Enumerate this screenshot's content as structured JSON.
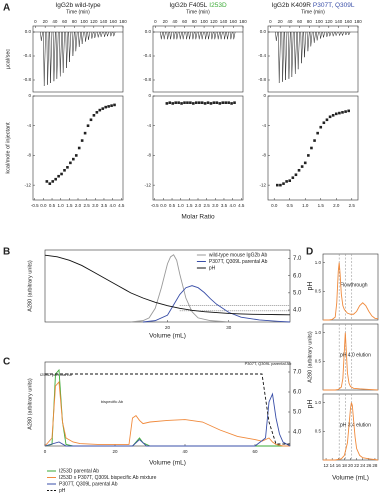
{
  "chart_data": [
    {
      "type": "thermogram",
      "panel": "A",
      "title_parts": [
        {
          "text": "IgG2b wild-type",
          "color": "#222222"
        }
      ],
      "xlabel": "Time (min)",
      "ylabel": "µcal/sec",
      "xlim": [
        -5,
        180
      ],
      "xticks": [
        0,
        20,
        40,
        60,
        80,
        100,
        120,
        140,
        160,
        180
      ],
      "ylim": [
        -1.0,
        0.1
      ],
      "yticks": [
        -0.8,
        -0.4,
        {
          "value": 0,
          "label": "0.0"
        }
      ],
      "color": "#222222",
      "x": [
        12,
        18,
        25,
        31,
        38,
        44,
        51,
        57,
        64,
        70,
        77,
        83,
        90,
        96,
        103,
        109,
        116,
        122,
        129,
        135,
        142,
        148,
        155,
        161
      ],
      "values": [
        -0.15,
        -0.9,
        -0.88,
        -0.85,
        -0.82,
        -0.78,
        -0.74,
        -0.68,
        -0.6,
        -0.5,
        -0.4,
        -0.32,
        -0.25,
        -0.2,
        -0.16,
        -0.13,
        -0.11,
        -0.1,
        -0.09,
        -0.08,
        -0.08,
        -0.07,
        -0.07,
        -0.07
      ]
    },
    {
      "type": "scatter",
      "ylabel": "kcal/mole of injectant",
      "xlim": [
        -0.6,
        4.6
      ],
      "xticks": [
        -0.5,
        {
          "value": 0,
          "label": "0.0"
        },
        0.5,
        {
          "value": 1,
          "label": "1.0"
        },
        1.5,
        {
          "value": 2,
          "label": "2.0"
        },
        2.5,
        {
          "value": 3,
          "label": "3.0"
        },
        3.5,
        {
          "value": 4,
          "label": "4.0"
        },
        4.5
      ],
      "ylim": [
        -14,
        0
      ],
      "yticks": [
        -12,
        -8,
        -4,
        0
      ],
      "color": "#222222",
      "x": [
        0.2,
        0.37,
        0.54,
        0.71,
        0.88,
        1.05,
        1.22,
        1.39,
        1.56,
        1.73,
        1.9,
        2.07,
        2.24,
        2.41,
        2.58,
        2.75,
        2.92,
        3.09,
        3.26,
        3.43,
        3.6,
        3.77,
        3.94,
        4.11
      ],
      "values": [
        -11.5,
        -11.8,
        -11.5,
        -11.2,
        -10.8,
        -10.5,
        -10,
        -9.6,
        -9,
        -8.5,
        -8,
        -7,
        -6,
        -5,
        -4,
        -3.2,
        -2.6,
        -2.2,
        -1.9,
        -1.7,
        -1.5,
        -1.4,
        -1.3,
        -1.2
      ]
    },
    {
      "type": "thermogram",
      "title_parts": [
        {
          "text": "IgG2b F405L",
          "color": "#222222"
        },
        {
          "text": "I253D",
          "color": "#3aaa35"
        }
      ],
      "xlabel": "Time (min)",
      "xlim": [
        -5,
        180
      ],
      "xticks": [
        0,
        20,
        40,
        60,
        80,
        100,
        120,
        140,
        160,
        180
      ],
      "ylim": [
        -1.0,
        0.1
      ],
      "yticks": [
        -0.8,
        -0.4,
        {
          "value": 0,
          "label": "0.0"
        }
      ],
      "color": "#222222",
      "x": [
        12,
        18,
        25,
        31,
        38,
        44,
        51,
        57,
        64,
        70,
        77,
        83,
        90,
        96,
        103,
        109,
        116,
        122,
        129,
        135,
        142,
        148,
        155,
        161
      ],
      "values": [
        -0.12,
        -0.12,
        -0.12,
        -0.12,
        -0.12,
        -0.12,
        -0.12,
        -0.12,
        -0.12,
        -0.12,
        -0.12,
        -0.12,
        -0.12,
        -0.12,
        -0.12,
        -0.12,
        -0.12,
        -0.12,
        -0.12,
        -0.12,
        -0.12,
        -0.12,
        -0.12,
        -0.12
      ]
    },
    {
      "type": "scatter",
      "xlabel": "Molar Ratio",
      "xlim": [
        -0.6,
        4.6
      ],
      "xticks": [
        -0.5,
        {
          "value": 0,
          "label": "0.0"
        },
        0.5,
        {
          "value": 1,
          "label": "1.0"
        },
        1.5,
        {
          "value": 2,
          "label": "2.0"
        },
        2.5,
        {
          "value": 3,
          "label": "3.0"
        },
        3.5,
        {
          "value": 4,
          "label": "4.0"
        },
        4.5
      ],
      "ylim": [
        -14,
        0
      ],
      "yticks": [
        -12,
        -8,
        -4,
        0
      ],
      "color": "#222222",
      "x": [
        0.2,
        0.37,
        0.54,
        0.71,
        0.88,
        1.05,
        1.22,
        1.39,
        1.56,
        1.73,
        1.9,
        2.07,
        2.24,
        2.41,
        2.58,
        2.75,
        2.92,
        3.09,
        3.26,
        3.43,
        3.6,
        3.77,
        3.94,
        4.11
      ],
      "values": [
        -1.0,
        -0.9,
        -1.0,
        -0.9,
        -0.9,
        -1.0,
        -0.9,
        -0.9,
        -0.9,
        -1.0,
        -0.9,
        -0.9,
        -0.9,
        -1.0,
        -0.9,
        -1.0,
        -0.9,
        -0.9,
        -1.0,
        -0.9,
        -0.9,
        -0.9,
        -1.0,
        -0.9
      ]
    },
    {
      "type": "thermogram",
      "title_parts": [
        {
          "text": "IgG2b K409R",
          "color": "#222222"
        },
        {
          "text": "P307T, Q309L",
          "color": "#3a4fa8"
        }
      ],
      "xlabel": "Time (min)",
      "xlim": [
        -5,
        180
      ],
      "xticks": [
        0,
        20,
        40,
        60,
        80,
        100,
        120,
        140,
        160,
        180
      ],
      "ylim": [
        -1.0,
        0.1
      ],
      "yticks": [
        -0.8,
        -0.4,
        {
          "value": 0,
          "label": "0.0"
        }
      ],
      "color": "#222222",
      "x": [
        12,
        18,
        25,
        31,
        38,
        44,
        51,
        57,
        64,
        70,
        77,
        83,
        90,
        96,
        103,
        109,
        116,
        122,
        129,
        135,
        142,
        148,
        155,
        161
      ],
      "values": [
        -0.15,
        -0.85,
        -0.83,
        -0.8,
        -0.78,
        -0.75,
        -0.7,
        -0.62,
        -0.52,
        -0.42,
        -0.32,
        -0.24,
        -0.18,
        -0.14,
        -0.11,
        -0.09,
        -0.08,
        -0.07,
        -0.07,
        -0.06,
        -0.06,
        -0.06,
        -0.05,
        -0.05
      ]
    },
    {
      "type": "scatter",
      "xlim": [
        -0.2,
        2.7
      ],
      "xticks": [
        {
          "value": 0,
          "label": "0.0"
        },
        0.5,
        {
          "value": 1,
          "label": "1.0"
        },
        1.5,
        {
          "value": 2,
          "label": "2.0"
        },
        2.5
      ],
      "ylim": [
        -14,
        0
      ],
      "yticks": [
        -12,
        -8,
        -4,
        0
      ],
      "color": "#222222",
      "x": [
        0.1,
        0.2,
        0.3,
        0.4,
        0.5,
        0.6,
        0.7,
        0.8,
        0.9,
        1.0,
        1.1,
        1.2,
        1.3,
        1.4,
        1.5,
        1.6,
        1.7,
        1.8,
        1.9,
        2.0,
        2.1,
        2.2,
        2.3,
        2.4
      ],
      "values": [
        -12,
        -12,
        -11.8,
        -11.5,
        -11.4,
        -11,
        -10.6,
        -10,
        -9.5,
        -9,
        -8,
        -7,
        -6,
        -5,
        -4.2,
        -3.6,
        -3.2,
        -2.8,
        -2.6,
        -2.4,
        -2.3,
        -2.2,
        -2.1,
        -2.0
      ]
    },
    {
      "type": "line",
      "panel": "B",
      "xlabel": "Volume (mL)",
      "ylabel": "A280 (arbitrary units)",
      "y2label": "pH",
      "xlim": [
        0,
        40
      ],
      "xticks": [
        20,
        30
      ],
      "ylim": [
        0,
        1.05
      ],
      "y2lim": [
        3.3,
        7.5
      ],
      "y2ticks": [
        {
          "value": 4,
          "label": "4.0"
        },
        {
          "value": 5,
          "label": "5.0"
        },
        {
          "value": 6,
          "label": "6.0"
        },
        {
          "value": 7,
          "label": "7.0"
        }
      ],
      "y2_hlines": [
        4.25,
        3.95
      ],
      "legend": "upper right",
      "series": [
        {
          "name": "wild-type mouse IgG2b Ab",
          "color": "#9a9a9a",
          "x": [
            14,
            16,
            17,
            18,
            19,
            20,
            20.5,
            21,
            21.5,
            22,
            23,
            24,
            25,
            27,
            30
          ],
          "values": [
            0,
            0.02,
            0.06,
            0.2,
            0.5,
            0.85,
            0.95,
            0.98,
            0.9,
            0.7,
            0.35,
            0.15,
            0.06,
            0.02,
            0
          ]
        },
        {
          "name": "P307T, Q309L parental Ab",
          "color": "#3a4fa8",
          "x": [
            16,
            18,
            20,
            21,
            22,
            23,
            24,
            25,
            26,
            27,
            28,
            30,
            32,
            35,
            38,
            40
          ],
          "values": [
            0,
            0.02,
            0.1,
            0.25,
            0.4,
            0.5,
            0.53,
            0.5,
            0.43,
            0.34,
            0.26,
            0.14,
            0.07,
            0.03,
            0.01,
            0
          ]
        },
        {
          "name": "pH",
          "color": "#111111",
          "axis": "y2",
          "x": [
            0,
            2,
            4,
            6,
            8,
            10,
            12,
            14,
            16,
            18,
            20,
            22,
            24,
            26,
            28,
            30,
            32,
            34,
            36,
            38,
            40
          ],
          "values": [
            7.2,
            7.1,
            6.9,
            6.6,
            6.2,
            5.8,
            5.4,
            5.0,
            4.7,
            4.45,
            4.25,
            4.1,
            3.98,
            3.9,
            3.85,
            3.8,
            3.77,
            3.75,
            3.74,
            3.73,
            3.72
          ]
        }
      ]
    },
    {
      "type": "line",
      "panel": "C",
      "xlabel": "Volume (mL)",
      "ylabel": "A280 (arbitrary units)",
      "y2label": "pH",
      "xlim": [
        0,
        70
      ],
      "xticks": [
        0,
        20,
        40,
        60
      ],
      "ylim": [
        0,
        1.05
      ],
      "y2lim": [
        3.3,
        7.5
      ],
      "y2ticks": [
        {
          "value": 4,
          "label": "4.0"
        },
        {
          "value": 5,
          "label": "5.0"
        },
        {
          "value": 6,
          "label": "6.0"
        },
        {
          "value": 7,
          "label": "7.0"
        }
      ],
      "annotations": [
        "I253D parental Ab",
        "bispecific Ab",
        "P307T, Q309L parental Ab"
      ],
      "legend": "below",
      "series": [
        {
          "name": "I253D parental Ab",
          "color": "#3aaa35",
          "x": [
            0,
            2,
            3,
            4,
            5,
            6,
            8,
            10,
            25,
            26,
            27,
            28,
            30,
            60,
            70
          ],
          "values": [
            0,
            0.02,
            0.9,
            0.95,
            0.3,
            0.02,
            0,
            0,
            0,
            0.05,
            0.1,
            0.04,
            0,
            0,
            0
          ]
        },
        {
          "name": "I253D x P307T, Q309L bispecific Ab mixture",
          "color": "#f08a3c",
          "x": [
            0,
            2,
            3,
            4,
            5,
            6,
            8,
            10,
            15,
            24,
            25,
            26,
            27,
            28,
            30,
            35,
            40,
            45,
            50,
            55,
            60,
            62,
            64,
            65,
            66,
            68,
            70
          ],
          "values": [
            0,
            0.1,
            0.75,
            0.8,
            0.3,
            0.1,
            0.05,
            0.03,
            0.02,
            0.02,
            0.35,
            0.38,
            0.32,
            0.28,
            0.3,
            0.32,
            0.33,
            0.3,
            0.2,
            0.12,
            0.08,
            0.06,
            0.1,
            0.05,
            0.02,
            0,
            0
          ]
        },
        {
          "name": "P307T, Q309L parental Ab",
          "color": "#3a4fa8",
          "x": [
            0,
            4,
            6,
            25,
            27,
            29,
            60,
            63,
            64,
            65,
            66,
            67,
            68,
            70
          ],
          "values": [
            0,
            0.05,
            0,
            0,
            0.08,
            0,
            0,
            0.1,
            0.55,
            0.65,
            0.35,
            0.15,
            0.05,
            0
          ]
        },
        {
          "name": "pH",
          "color": "#111111",
          "axis": "y2",
          "linestyle": "dashed",
          "x": [
            0,
            26,
            27,
            62,
            64,
            66,
            70
          ],
          "values": [
            6.9,
            6.9,
            6.9,
            6.9,
            4.5,
            3.4,
            3.4
          ]
        }
      ]
    },
    {
      "type": "line",
      "panel": "D",
      "label": "Flowthrough",
      "xlim": [
        11,
        29
      ],
      "ylim": [
        0,
        1.15
      ],
      "yticks": [
        0.5,
        {
          "value": 1,
          "label": "1.0"
        }
      ],
      "vlines": [
        16.3,
        18.4,
        20.4
      ],
      "series": [
        {
          "color": "#f08a3c",
          "x": [
            11,
            13,
            14,
            15,
            15.5,
            16,
            16.3,
            16.6,
            17,
            17.5,
            18,
            19,
            20,
            21,
            22,
            23,
            24,
            25,
            26,
            27,
            28,
            29
          ],
          "values": [
            0,
            0,
            0.01,
            0.05,
            0.3,
            0.85,
            1.0,
            0.8,
            0.45,
            0.25,
            0.18,
            0.12,
            0.1,
            0.1,
            0.15,
            0.25,
            0.3,
            0.25,
            0.15,
            0.07,
            0.03,
            0.02
          ]
        }
      ]
    },
    {
      "type": "line",
      "label": "pH 4.0 elution",
      "ylabel": "A280 (arbitrary units)",
      "xlim": [
        11,
        29
      ],
      "ylim": [
        0,
        1.15
      ],
      "yticks": [
        0.5,
        {
          "value": 1,
          "label": "1.0"
        }
      ],
      "vlines": [
        16.3,
        18.4,
        20.4
      ],
      "series": [
        {
          "color": "#f08a3c",
          "x": [
            11,
            15,
            16,
            17,
            17.5,
            18,
            18.3,
            18.6,
            19,
            19.5,
            20,
            21,
            23,
            26,
            29
          ],
          "values": [
            0,
            0,
            0.01,
            0.05,
            0.2,
            0.7,
            1.0,
            0.7,
            0.3,
            0.12,
            0.06,
            0.03,
            0.02,
            0.01,
            0
          ]
        }
      ]
    },
    {
      "type": "line",
      "label": "pH 3.4 elution",
      "xlabel": "Volume (mL)",
      "xlim": [
        11,
        29
      ],
      "xticks": [
        12,
        14,
        16,
        18,
        20,
        22,
        24,
        26,
        28
      ],
      "ylim": [
        0,
        1.15
      ],
      "yticks": [
        0.5,
        {
          "value": 1,
          "label": "1.0"
        }
      ],
      "vlines": [
        16.3,
        18.4,
        20.4
      ],
      "series": [
        {
          "color": "#f08a3c",
          "x": [
            11,
            15,
            17,
            18,
            19,
            19.5,
            20,
            20.3,
            20.6,
            21,
            21.5,
            22,
            23,
            24,
            26,
            29
          ],
          "values": [
            0,
            0,
            0.02,
            0.08,
            0.3,
            0.6,
            0.9,
            1.0,
            0.95,
            0.7,
            0.4,
            0.2,
            0.08,
            0.04,
            0.02,
            0
          ]
        }
      ]
    }
  ]
}
